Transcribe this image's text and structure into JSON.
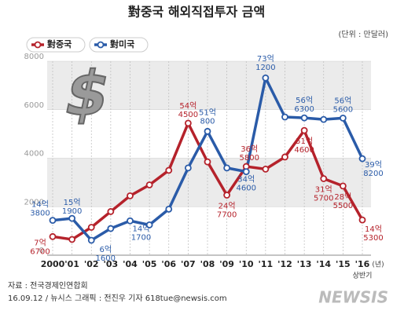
{
  "chart_data": {
    "type": "line",
    "title": "對중국 해외직접투자 금액",
    "unit_label": "(단위 : 만달러)",
    "categories": [
      "2000",
      "'01",
      "'02",
      "'03",
      "'04",
      "'05",
      "'06",
      "'07",
      "'08",
      "'09",
      "'10",
      "'11",
      "'12",
      "'13",
      "'14",
      "'15",
      "'16"
    ],
    "x_unit": "(년)",
    "last_note": "상반기",
    "ylim": [
      0,
      8000
    ],
    "yticks": [
      0,
      2000,
      4000,
      6000,
      8000
    ],
    "grid": true,
    "legend": "top-left",
    "series": [
      {
        "name": "對중국",
        "color": "#b5222b",
        "values": [
          767,
          650,
          1150,
          1800,
          2450,
          2900,
          3500,
          5445,
          3850,
          2477,
          3658,
          3550,
          4050,
          5146,
          3157,
          2855,
          1453
        ],
        "value_labels": [
          "7억 6700",
          null,
          null,
          null,
          null,
          null,
          null,
          "54억 4500",
          null,
          "24억 7700",
          "36억 5800",
          null,
          null,
          "51억 4600",
          "31억 5700",
          "28억 5500",
          "14억 5300"
        ]
      },
      {
        "name": "對미국",
        "color": "#2a5ba8",
        "values": [
          1438,
          1519,
          616,
          1100,
          1417,
          1250,
          1900,
          3600,
          5108,
          3600,
          3446,
          7312,
          5700,
          5663,
          5600,
          5656,
          3982
        ],
        "value_labels": [
          "14억 3800",
          "15억 1900",
          "6억 1600",
          null,
          "14억 1700",
          null,
          null,
          null,
          "51억 800",
          null,
          "34억 4600",
          "73억 1200",
          null,
          "56억 6300",
          null,
          "56억 5600",
          "39억 8200"
        ]
      }
    ],
    "source": "자료 : 전국경제인연합회",
    "credit": "16.09.12 / 뉴시스 그래픽 : 전진우 기자 618tue@newsis.com",
    "watermark": "NEWSIS"
  }
}
